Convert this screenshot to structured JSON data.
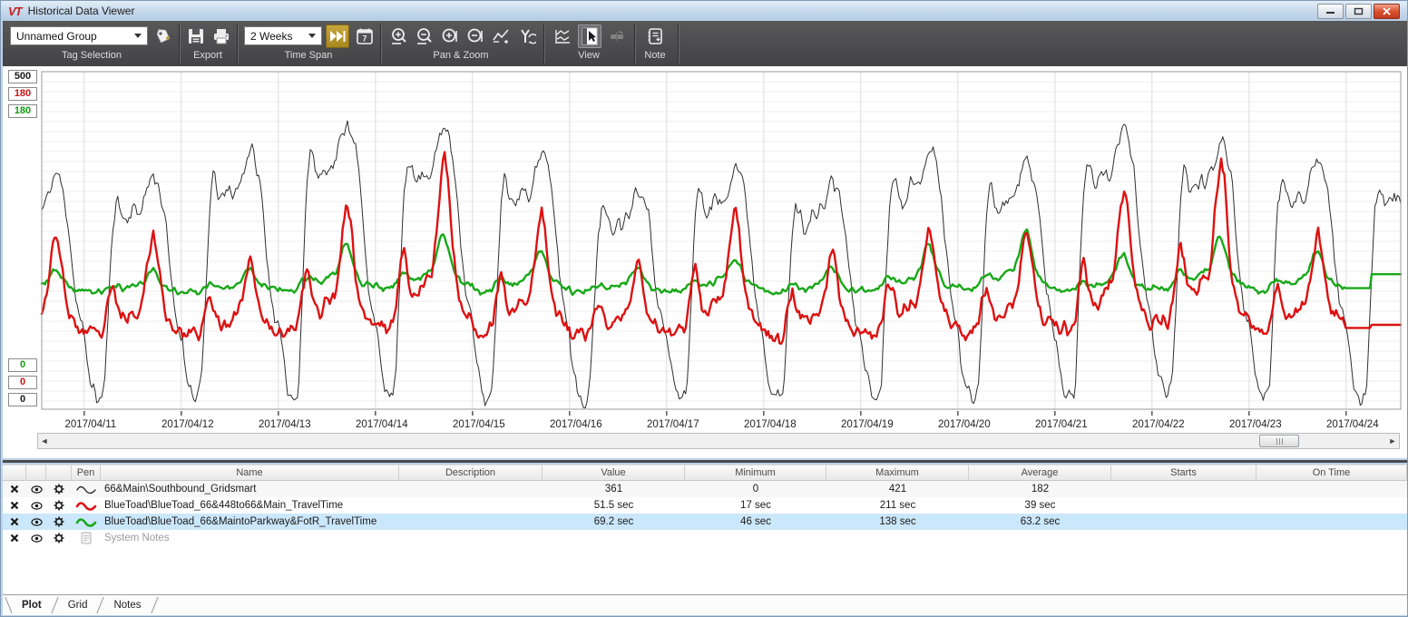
{
  "window": {
    "logo_text": "VT",
    "title": "Historical Data Viewer"
  },
  "toolbar": {
    "tag_selection": {
      "group_label": "Tag Selection",
      "dropdown_value": "Unnamed Group"
    },
    "export": {
      "group_label": "Export"
    },
    "time_span": {
      "group_label": "Time Span",
      "dropdown_value": "2 Weeks",
      "calendar_number": "7"
    },
    "pan_zoom": {
      "group_label": "Pan & Zoom"
    },
    "view": {
      "group_label": "View"
    },
    "note": {
      "group_label": "Note"
    }
  },
  "axes": {
    "top": [
      {
        "label": "500",
        "color": "#1a1a1a"
      },
      {
        "label": "180",
        "color": "#cc1111"
      },
      {
        "label": "180",
        "color": "#0f9b0f"
      }
    ],
    "bottom": [
      {
        "label": "0",
        "color": "#0f9b0f"
      },
      {
        "label": "0",
        "color": "#cc1111"
      },
      {
        "label": "0",
        "color": "#1a1a1a"
      }
    ]
  },
  "chart_data": {
    "type": "line",
    "title": "",
    "xlabel": "",
    "ylabel": "",
    "grid": true,
    "legend_position": "table-below",
    "x_dates": [
      "2017/04/11",
      "2017/04/12",
      "2017/04/13",
      "2017/04/14",
      "2017/04/15",
      "2017/04/16",
      "2017/04/17",
      "2017/04/18",
      "2017/04/19",
      "2017/04/20",
      "2017/04/21",
      "2017/04/22",
      "2017/04/23",
      "2017/04/24"
    ],
    "time": {
      "total_hours": 336,
      "start_offset_hours": 10.5,
      "step_hours": 0.4,
      "hours_per_day": 24
    },
    "draw_order": [
      0,
      2,
      1
    ],
    "series": [
      {
        "name": "66&Main\\Southbound_Gridsmart",
        "color": "#2f2f2f",
        "stroke_width": 1,
        "axis": {
          "min": 0,
          "max": 500
        },
        "stats": {
          "value": 361,
          "minimum": 0,
          "maximum": 421,
          "average": 182
        },
        "mode": "peak_scaled",
        "seed": 11,
        "noise_amp": 20,
        "hourly_profile": [
          0.3,
          0.18,
          0.09,
          0.05,
          0.04,
          0.09,
          0.42,
          0.78,
          0.9,
          0.84,
          0.8,
          0.82,
          0.85,
          0.83,
          0.85,
          0.9,
          0.96,
          1.0,
          0.97,
          0.9,
          0.8,
          0.62,
          0.46,
          0.37,
          0.3
        ],
        "day_peaks": [
          350,
          385,
          430,
          420,
          380,
          335,
          365,
          340,
          390,
          370,
          415,
          400,
          380,
          375
        ]
      },
      {
        "name": "BlueToad\\BlueToad_66&448to66&Main_TravelTime",
        "color": "#dd1111",
        "stroke_width": 2.4,
        "axis": {
          "min": 0,
          "max": 180
        },
        "stats": {
          "value": "51.5 sec",
          "minimum": "17 sec",
          "maximum": "211 sec",
          "average": "39 sec"
        },
        "mode": "base_peak",
        "seed": 23,
        "noise_amp": 6,
        "hourly_profile": [
          0.06,
          0.04,
          0.02,
          0.02,
          0.03,
          0.08,
          0.32,
          0.5,
          0.34,
          0.2,
          0.16,
          0.2,
          0.24,
          0.27,
          0.32,
          0.5,
          0.78,
          1.0,
          0.82,
          0.45,
          0.26,
          0.16,
          0.11,
          0.08,
          0.06
        ],
        "day_bases": [
          38,
          38,
          40,
          42,
          40,
          38,
          40,
          38,
          40,
          40,
          42,
          44,
          40,
          32
        ],
        "day_peaks": [
          95,
          82,
          112,
          140,
          108,
          78,
          108,
          85,
          100,
          95,
          120,
          135,
          95,
          60
        ],
        "tail": {
          "hold_from_hour": 322,
          "step_at_hour": 328.5,
          "final_value": 45
        }
      },
      {
        "name": "BlueToad\\BlueToad_66&MaintoParkway&FotR_TravelTime",
        "color": "#18a818",
        "stroke_width": 2.4,
        "axis": {
          "min": 0,
          "max": 180
        },
        "stats": {
          "value": "69.2 sec",
          "minimum": "46 sec",
          "maximum": "138 sec",
          "average": "63.2 sec"
        },
        "mode": "base_peak",
        "seed": 37,
        "noise_amp": 2.5,
        "hourly_profile": [
          0.12,
          0.06,
          0.03,
          0.03,
          0.06,
          0.12,
          0.25,
          0.35,
          0.3,
          0.22,
          0.2,
          0.24,
          0.3,
          0.34,
          0.4,
          0.6,
          0.9,
          1.0,
          0.75,
          0.45,
          0.3,
          0.2,
          0.15,
          0.12,
          0.12
        ],
        "day_bases": [
          62,
          62,
          62,
          63,
          62,
          61,
          62,
          61,
          62,
          62,
          62,
          63,
          62,
          60
        ],
        "day_peaks": [
          74,
          76,
          88,
          94,
          85,
          76,
          82,
          76,
          88,
          95,
          82,
          93,
          85,
          72
        ],
        "tail": {
          "hold_from_hour": 322,
          "step_at_hour": 328.5,
          "final_value": 72
        }
      }
    ]
  },
  "table": {
    "columns": [
      "",
      "",
      "",
      "Pen",
      "Name",
      "Description",
      "Value",
      "Minimum",
      "Maximum",
      "Average",
      "Starts",
      "On Time"
    ],
    "rows": [
      {
        "name": "66&Main\\Southbound_Gridsmart",
        "description": "",
        "value": "361",
        "minimum": "0",
        "maximum": "421",
        "average": "182",
        "starts": "",
        "on_time": "",
        "pen_color": "#2f2f2f",
        "selected": false
      },
      {
        "name": "BlueToad\\BlueToad_66&448to66&Main_TravelTime",
        "description": "",
        "value": "51.5 sec",
        "minimum": "17 sec",
        "maximum": "211 sec",
        "average": "39 sec",
        "starts": "",
        "on_time": "",
        "pen_color": "#dd1111",
        "selected": false
      },
      {
        "name": "BlueToad\\BlueToad_66&MaintoParkway&FotR_TravelTime",
        "description": "",
        "value": "69.2 sec",
        "minimum": "46 sec",
        "maximum": "138 sec",
        "average": "63.2 sec",
        "starts": "",
        "on_time": "",
        "pen_color": "#18a818",
        "selected": true
      },
      {
        "name": "System Notes",
        "description": "",
        "value": "",
        "minimum": "",
        "maximum": "",
        "average": "",
        "starts": "",
        "on_time": "",
        "pen_color": "#aaaaaa",
        "selected": false,
        "is_notes": true
      }
    ]
  },
  "tabs": [
    {
      "label": "Plot",
      "active": true
    },
    {
      "label": "Grid",
      "active": false
    },
    {
      "label": "Notes",
      "active": false
    }
  ]
}
